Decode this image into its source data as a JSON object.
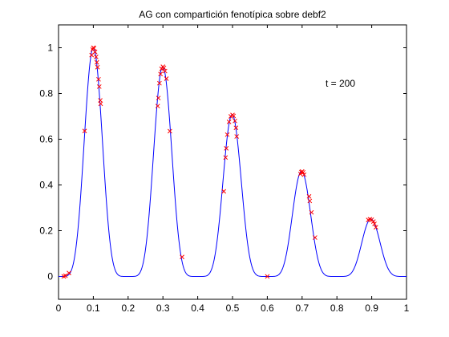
{
  "chart_data": {
    "type": "line",
    "title": "AG con compartición fenotípica sobre debf2",
    "xlabel": "",
    "ylabel": "",
    "xlim": [
      0,
      1
    ],
    "ylim": [
      -0.1,
      1.1
    ],
    "x_ticks": [
      "0",
      "0.1",
      "0.2",
      "0.3",
      "0.4",
      "0.5",
      "0.6",
      "0.7",
      "0.8",
      "0.9",
      "1"
    ],
    "y_ticks": [
      "0",
      "0.2",
      "0.4",
      "0.6",
      "0.8",
      "1"
    ],
    "grid": false,
    "annotation": "t = 200",
    "curve": {
      "color": "#0000ff",
      "function": "exp(-2 ln2 ((x-0.1)/0.8)^2) * sin^6(5 pi x)",
      "peaks": [
        {
          "x": 0.1,
          "y": 1.0
        },
        {
          "x": 0.3,
          "y": 0.917
        },
        {
          "x": 0.5,
          "y": 0.707
        },
        {
          "x": 0.7,
          "y": 0.459
        },
        {
          "x": 0.9,
          "y": 0.25
        }
      ]
    },
    "points": {
      "marker": "x",
      "color": "#ff0000",
      "x": [
        0.015,
        0.02,
        0.03,
        0.075,
        0.095,
        0.098,
        0.1,
        0.102,
        0.105,
        0.108,
        0.11,
        0.112,
        0.115,
        0.117,
        0.12,
        0.121,
        0.285,
        0.287,
        0.29,
        0.293,
        0.296,
        0.3,
        0.303,
        0.306,
        0.31,
        0.32,
        0.355,
        0.475,
        0.48,
        0.482,
        0.485,
        0.49,
        0.495,
        0.5,
        0.503,
        0.507,
        0.51,
        0.512,
        0.6,
        0.695,
        0.698,
        0.7,
        0.703,
        0.706,
        0.72,
        0.722,
        0.727,
        0.737,
        0.89,
        0.895,
        0.9,
        0.905,
        0.908,
        0.912
      ],
      "y": [
        0.0,
        0.003,
        0.015,
        0.636,
        0.968,
        0.992,
        1.0,
        0.998,
        0.982,
        0.96,
        0.936,
        0.915,
        0.862,
        0.83,
        0.77,
        0.755,
        0.745,
        0.78,
        0.845,
        0.885,
        0.908,
        0.917,
        0.912,
        0.898,
        0.865,
        0.635,
        0.085,
        0.372,
        0.52,
        0.56,
        0.62,
        0.676,
        0.7,
        0.706,
        0.702,
        0.68,
        0.65,
        0.612,
        0.0,
        0.448,
        0.456,
        0.459,
        0.455,
        0.445,
        0.35,
        0.33,
        0.28,
        0.17,
        0.247,
        0.25,
        0.248,
        0.24,
        0.23,
        0.215
      ]
    }
  }
}
